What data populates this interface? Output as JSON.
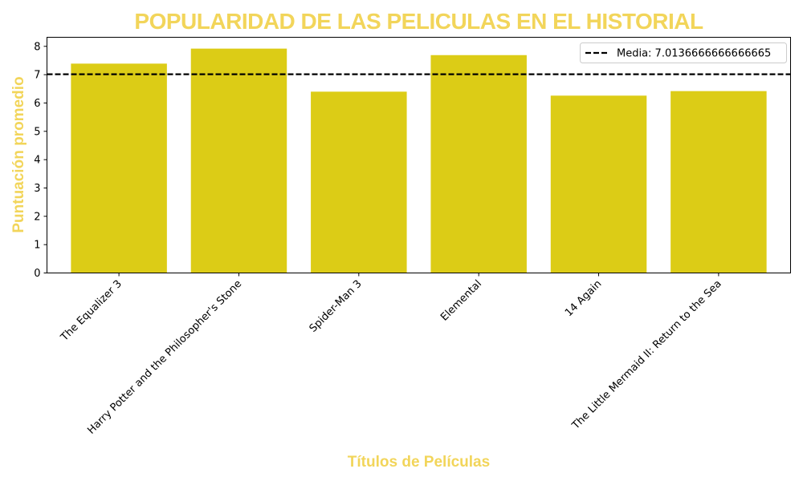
{
  "chart_data": {
    "type": "bar",
    "title": "POPULARIDAD DE LAS PELICULAS EN EL HISTORIAL",
    "xlabel": "Títulos de Películas",
    "ylabel": "Puntuación promedio",
    "categories": [
      "The Equalizer 3",
      "Harry Potter and the Philosopher's Stone",
      "Spider-Man 3",
      "Elemental",
      "14 Again",
      "The Little Mermaid II: Return to the Sea"
    ],
    "values": [
      7.39,
      7.92,
      6.4,
      7.69,
      6.26,
      6.42
    ],
    "ylim": [
      0,
      8.32
    ],
    "yticks": [
      0,
      1,
      2,
      3,
      4,
      5,
      6,
      7,
      8
    ],
    "bar_color": "#dccc16",
    "title_color": "#f2d55a",
    "mean_line": {
      "value": 7.0136666666666665,
      "label": "Media: 7.0136666666666665",
      "style": "dashed",
      "color": "#000000"
    },
    "legend_position": "top-right",
    "grid": false
  }
}
